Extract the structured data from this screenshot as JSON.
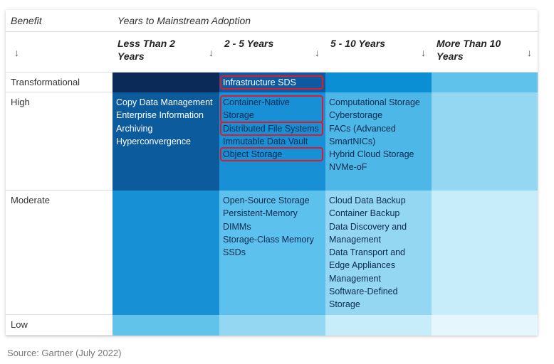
{
  "header": {
    "benefit": "Benefit",
    "title": "Years to Mainstream Adoption"
  },
  "columns": [
    "Less Than 2 Years",
    "2 - 5 Years",
    "5 - 10 Years",
    "More Than 10 Years"
  ],
  "rows": [
    {
      "label": "Transformational",
      "cells": [
        [],
        [
          {
            "text": "Infrastructure SDS",
            "highlight": true
          }
        ],
        [],
        []
      ]
    },
    {
      "label": "High",
      "cells": [
        [
          {
            "text": "Copy Data Management"
          },
          {
            "text": "Enterprise Information Archiving"
          },
          {
            "text": "Hyperconvergence"
          }
        ],
        [
          {
            "text": "Container-Native Storage",
            "highlight": true
          },
          {
            "text": "Distributed File Systems",
            "highlight": true
          },
          {
            "text": "Immutable Data Vault"
          },
          {
            "text": "Object Storage",
            "highlight": true
          }
        ],
        [
          {
            "text": "Computational Storage"
          },
          {
            "text": "Cyberstorage"
          },
          {
            "text": "FACs (Advanced SmartNICs)"
          },
          {
            "text": "Hybrid Cloud Storage"
          },
          {
            "text": "NVMe-oF"
          }
        ],
        []
      ]
    },
    {
      "label": "Moderate",
      "cells": [
        [],
        [
          {
            "text": "Open-Source Storage"
          },
          {
            "text": "Persistent-Memory DIMMs"
          },
          {
            "text": "Storage-Class Memory SSDs"
          }
        ],
        [
          {
            "text": "Cloud Data Backup"
          },
          {
            "text": "Container Backup"
          },
          {
            "text": "Data Discovery and Management"
          },
          {
            "text": "Data Transport and Edge Appliances Management"
          },
          {
            "text": "Software-Defined Storage"
          }
        ],
        []
      ]
    },
    {
      "label": "Low",
      "cells": [
        [],
        [],
        [],
        []
      ]
    }
  ],
  "source": "Source: Gartner (July 2022)"
}
